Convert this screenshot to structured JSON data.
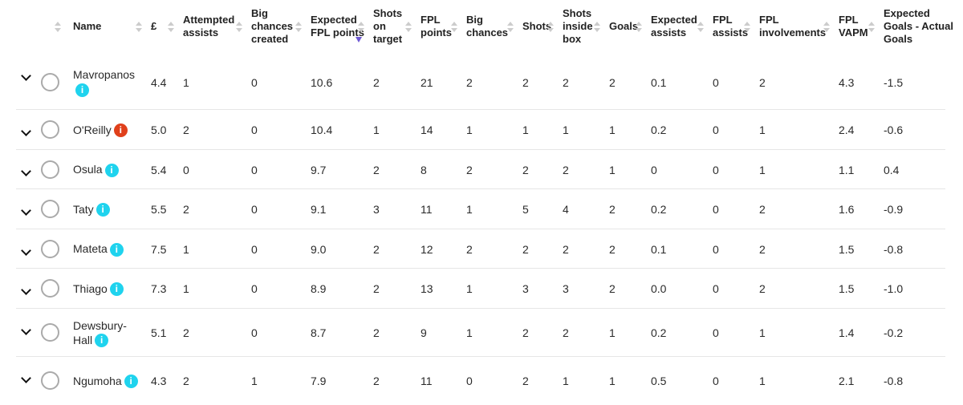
{
  "table": {
    "headers": [
      "Name",
      "£",
      "Attempted assists",
      "Big chances created",
      "Expected FPL points",
      "Shots on target",
      "FPL points",
      "Big chances",
      "Shots",
      "Shots inside box",
      "Goals",
      "Expected assists",
      "FPL assists",
      "FPL involvements",
      "FPL VAPM",
      "Expected Goals - Actual Goals"
    ],
    "sort_column": 4,
    "rows": [
      {
        "name": "Mavropanos",
        "info_color": "#1fd3ee",
        "cells": [
          "4.4",
          "1",
          "0",
          "10.6",
          "2",
          "21",
          "2",
          "2",
          "2",
          "2",
          "0.1",
          "0",
          "2",
          "4.3",
          "-1.5"
        ]
      },
      {
        "name": "O'Reilly",
        "info_color": "#e0401b",
        "cells": [
          "5.0",
          "2",
          "0",
          "10.4",
          "1",
          "14",
          "1",
          "1",
          "1",
          "1",
          "0.2",
          "0",
          "1",
          "2.4",
          "-0.6"
        ]
      },
      {
        "name": "Osula",
        "info_color": "#1fd3ee",
        "cells": [
          "5.4",
          "0",
          "0",
          "9.7",
          "2",
          "8",
          "2",
          "2",
          "2",
          "1",
          "0",
          "0",
          "1",
          "1.1",
          "0.4"
        ]
      },
      {
        "name": "Taty",
        "info_color": "#1fd3ee",
        "cells": [
          "5.5",
          "2",
          "0",
          "9.1",
          "3",
          "11",
          "1",
          "5",
          "4",
          "2",
          "0.2",
          "0",
          "2",
          "1.6",
          "-0.9"
        ]
      },
      {
        "name": "Mateta",
        "info_color": "#1fd3ee",
        "cells": [
          "7.5",
          "1",
          "0",
          "9.0",
          "2",
          "12",
          "2",
          "2",
          "2",
          "2",
          "0.1",
          "0",
          "2",
          "1.5",
          "-0.8"
        ]
      },
      {
        "name": "Thiago",
        "info_color": "#1fd3ee",
        "cells": [
          "7.3",
          "1",
          "0",
          "8.9",
          "2",
          "13",
          "1",
          "3",
          "3",
          "2",
          "0.0",
          "0",
          "2",
          "1.5",
          "-1.0"
        ]
      },
      {
        "name": "Dewsbury-Hall",
        "info_color": "#1fd3ee",
        "cells": [
          "5.1",
          "2",
          "0",
          "8.7",
          "2",
          "9",
          "1",
          "2",
          "2",
          "1",
          "0.2",
          "0",
          "1",
          "1.4",
          "-0.2"
        ]
      },
      {
        "name": "Ngumoha",
        "info_color": "#1fd3ee",
        "cells": [
          "4.3",
          "2",
          "1",
          "7.9",
          "2",
          "11",
          "0",
          "2",
          "1",
          "1",
          "0.5",
          "0",
          "1",
          "2.1",
          "-0.8"
        ]
      }
    ]
  }
}
